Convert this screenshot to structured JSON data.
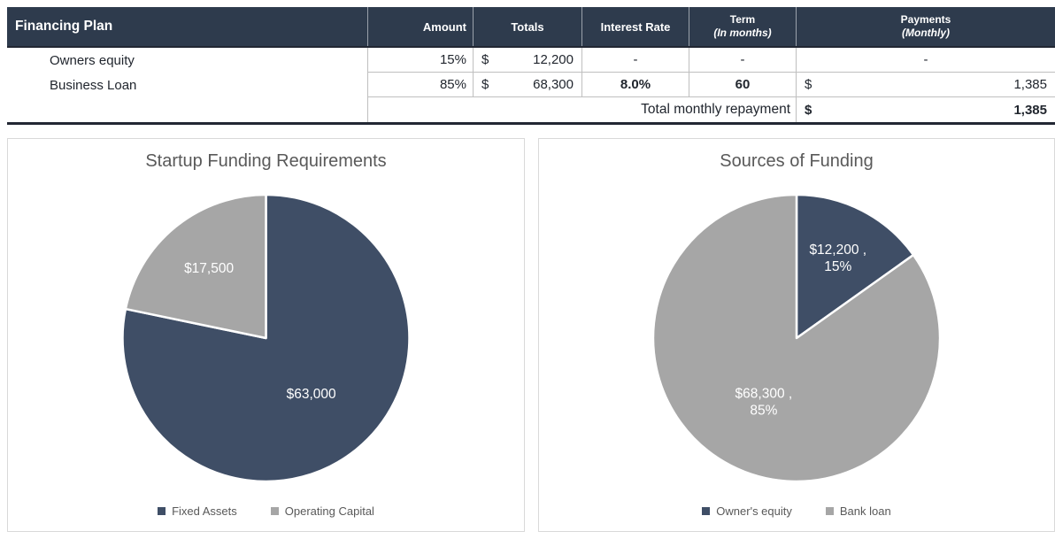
{
  "financing_table": {
    "title": "Financing Plan",
    "headers": {
      "amount": "Amount",
      "totals": "Totals",
      "interest_rate": "Interest Rate",
      "term": "Term",
      "term_sub": "(In months)",
      "payments": "Payments",
      "payments_sub": "(Monthly)"
    },
    "rows": [
      {
        "name": "Owners equity",
        "amount": "15%",
        "currency": "$",
        "total": "12,200",
        "interest_rate": "-",
        "term": "-",
        "payment": "-"
      },
      {
        "name": "Business Loan",
        "amount": "85%",
        "currency": "$",
        "total": "68,300",
        "interest_rate": "8.0%",
        "term": "60",
        "payment_currency": "$",
        "payment": "1,385"
      }
    ],
    "footer": {
      "label": "Total monthly repayment",
      "currency": "$",
      "value": "1,385"
    }
  },
  "chart_data": [
    {
      "type": "pie",
      "title": "Startup Funding Requirements",
      "categories": [
        "Fixed Assets",
        "Operating Capital"
      ],
      "values": [
        63000,
        17500
      ],
      "slice_labels": [
        [
          "$63,000"
        ],
        [
          "$17,500"
        ]
      ],
      "colors": [
        "#3f4e66",
        "#a6a6a6"
      ],
      "label_color": "#ffffff",
      "legend_position": "bottom",
      "start_angle_deg": 0,
      "direction": "clockwise"
    },
    {
      "type": "pie",
      "title": "Sources of Funding",
      "categories": [
        "Owner's equity",
        "Bank loan"
      ],
      "values": [
        12200,
        68300
      ],
      "slice_labels": [
        [
          "$12,200 ,",
          "15%"
        ],
        [
          "$68,300 ,",
          "85%"
        ]
      ],
      "colors": [
        "#3f4e66",
        "#a6a6a6"
      ],
      "label_color": "#ffffff",
      "legend_position": "bottom",
      "start_angle_deg": 0,
      "direction": "clockwise"
    }
  ],
  "colors": {
    "header_bg": "#2e3b4d",
    "header_text": "#ffffff",
    "navy_slice": "#3f4e66",
    "gray_slice": "#a6a6a6",
    "cell_border": "#bfbfbf",
    "heavy_border": "#222733",
    "chart_text": "#595959",
    "card_border": "#d9d9d9"
  }
}
